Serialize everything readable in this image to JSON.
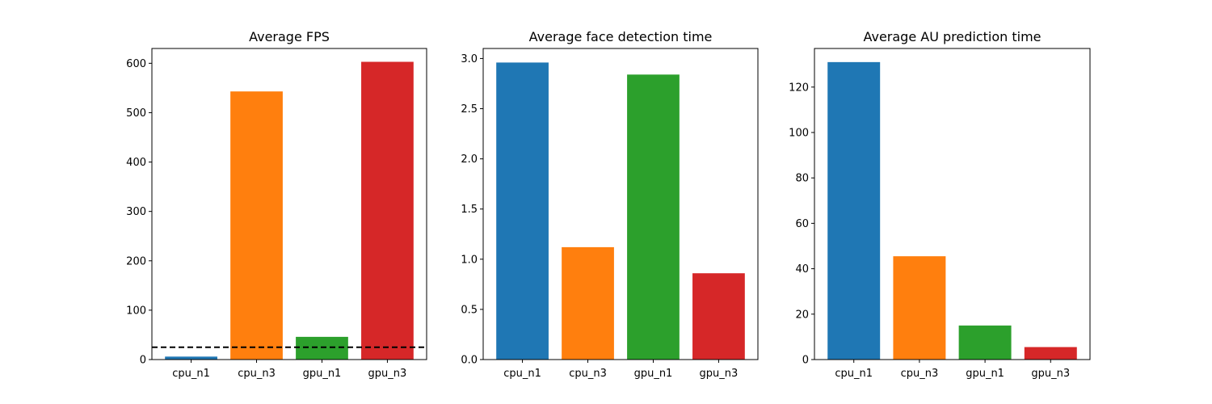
{
  "chart_data": [
    {
      "type": "bar",
      "title": "Average FPS",
      "categories": [
        "cpu_n1",
        "cpu_n3",
        "gpu_n1",
        "gpu_n3"
      ],
      "values": [
        6,
        543,
        46,
        603
      ],
      "colors": [
        "#1f77b4",
        "#ff7f0e",
        "#2ca02c",
        "#d62728"
      ],
      "ylim": [
        0,
        630
      ],
      "yticks": [
        0,
        100,
        200,
        300,
        400,
        500,
        600
      ],
      "reference_line": {
        "y": 25,
        "style": "dashed",
        "color": "#000000"
      },
      "xlabel": "",
      "ylabel": "",
      "grid": false
    },
    {
      "type": "bar",
      "title": "Average face detection time",
      "categories": [
        "cpu_n1",
        "cpu_n3",
        "gpu_n1",
        "gpu_n3"
      ],
      "values": [
        2.96,
        1.12,
        2.84,
        0.86
      ],
      "colors": [
        "#1f77b4",
        "#ff7f0e",
        "#2ca02c",
        "#d62728"
      ],
      "ylim": [
        0,
        3.1
      ],
      "yticks": [
        0.0,
        0.5,
        1.0,
        1.5,
        2.0,
        2.5,
        3.0
      ],
      "ytick_decimals": 1,
      "xlabel": "",
      "ylabel": "",
      "grid": false
    },
    {
      "type": "bar",
      "title": "Average AU prediction time",
      "categories": [
        "cpu_n1",
        "cpu_n3",
        "gpu_n1",
        "gpu_n3"
      ],
      "values": [
        131,
        45.5,
        15,
        5.5
      ],
      "colors": [
        "#1f77b4",
        "#ff7f0e",
        "#2ca02c",
        "#d62728"
      ],
      "ylim": [
        0,
        137
      ],
      "yticks": [
        0,
        20,
        40,
        60,
        80,
        100,
        120
      ],
      "xlabel": "",
      "ylabel": "",
      "grid": false
    }
  ]
}
